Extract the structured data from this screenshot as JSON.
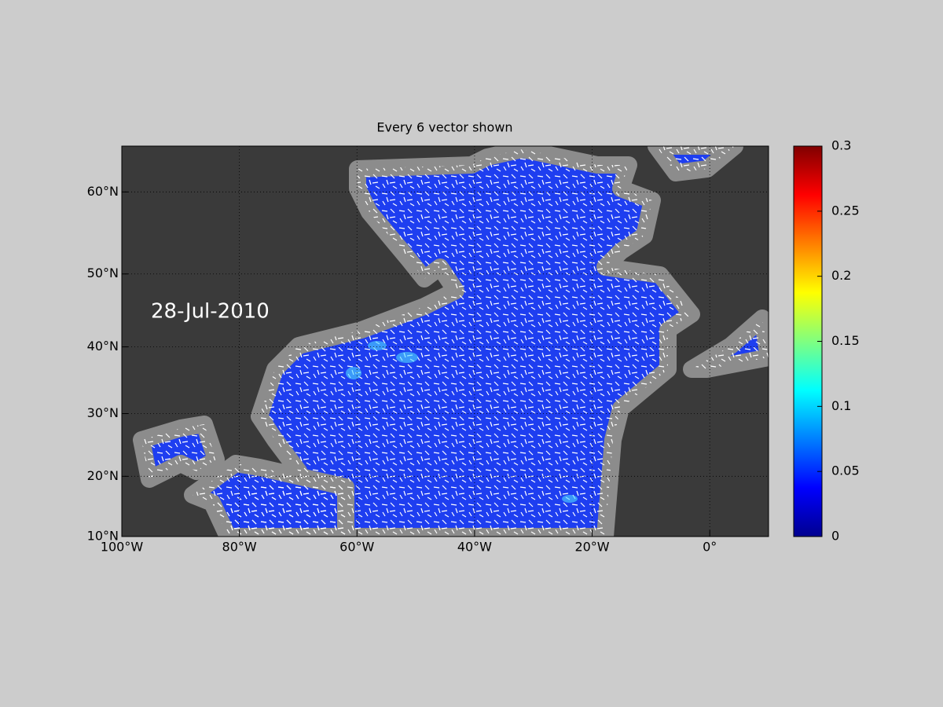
{
  "chart_data": {
    "type": "map",
    "projection": "miller",
    "title": "Every 6 vector shown",
    "annotation": "28-Jul-2010",
    "xlim": [
      -100,
      10
    ],
    "ylim": [
      10,
      65
    ],
    "xticks": [
      {
        "value": -100,
        "label": "100°W"
      },
      {
        "value": -80,
        "label": "80°W"
      },
      {
        "value": -60,
        "label": "60°W"
      },
      {
        "value": -40,
        "label": "40°W"
      },
      {
        "value": -20,
        "label": "20°W"
      },
      {
        "value": 0,
        "label": "0°"
      }
    ],
    "yticks": [
      {
        "value": 10,
        "label": "10°N"
      },
      {
        "value": 20,
        "label": "20°N"
      },
      {
        "value": 30,
        "label": "30°N"
      },
      {
        "value": 40,
        "label": "40°N"
      },
      {
        "value": 50,
        "label": "50°N"
      },
      {
        "value": 60,
        "label": "60°N"
      }
    ],
    "grid": true,
    "colorbar": {
      "lim": [
        0,
        0.3
      ],
      "ticks": [
        0,
        0.05,
        0.1,
        0.15,
        0.2,
        0.25,
        0.3
      ]
    }
  }
}
